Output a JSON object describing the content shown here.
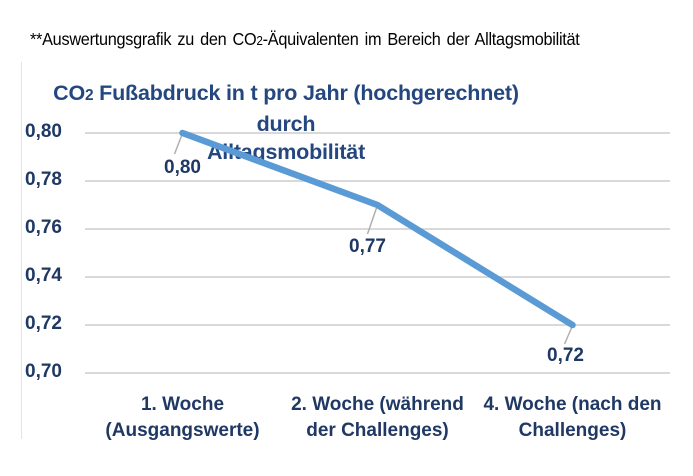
{
  "caption": {
    "prefix": "**Auswertungsgrafik zu den CO",
    "subscript": "2",
    "suffix": "-Äquivalenten im Bereich der Alltagsmobilität"
  },
  "chart": {
    "title": {
      "prefix": "CO",
      "subscript": "2",
      "suffix": " Fußabdruck in t pro Jahr (hochgerechnet) durch",
      "line2": "Alltagsmobilität"
    }
  },
  "chart_data": {
    "type": "line",
    "title": "CO2 Fußabdruck in t pro Jahr (hochgerechnet) durch Alltagsmobilität",
    "categories": [
      "1. Woche (Ausgangswerte)",
      "2. Woche (während der Challenges)",
      "4. Woche (nach den Challenges)"
    ],
    "category_label_lines": [
      [
        "1. Woche",
        "(Ausgangswerte)"
      ],
      [
        "2. Woche (während",
        "der Challenges)"
      ],
      [
        "4. Woche (nach den",
        "Challenges)"
      ]
    ],
    "values": [
      0.8,
      0.77,
      0.72
    ],
    "data_labels": [
      "0,80",
      "0,77",
      "0,72"
    ],
    "xlabel": "",
    "ylabel": "",
    "ylim": [
      0.7,
      0.8
    ],
    "ytick_step": 0.02,
    "ytick_labels": [
      "0,80",
      "0,78",
      "0,76",
      "0,74",
      "0,72",
      "0,70"
    ],
    "grid": true,
    "legend": "none",
    "colors": {
      "line": "#5b9bd5",
      "text": "#1f3864",
      "title": "#24477f",
      "gridline": "#d9d9d9",
      "leader": "#afafaf",
      "caption": "#000000"
    }
  }
}
